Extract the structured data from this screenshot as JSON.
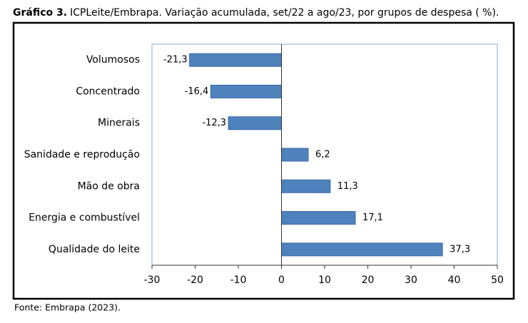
{
  "chart_data": {
    "type": "hbar",
    "title_label": "Gráfico 3.",
    "title": "ICPLeite/Embrapa. Variação acumulada, set/22 a ago/23, por grupos de despesa ( %).",
    "source": "Fonte: Embrapa (2023).",
    "categories": [
      "Volumosos",
      "Concentrado",
      "Minerais",
      "Sanidade e reprodução",
      "Mão de obra",
      "Energia e combustível",
      "Qualidade do leite"
    ],
    "values": [
      -21.3,
      -16.4,
      -12.3,
      6.2,
      11.3,
      17.1,
      37.3
    ],
    "value_labels": [
      "-21,3",
      "-16,4",
      "-12,3",
      "6,2",
      "11,3",
      "17,1",
      "37,3"
    ],
    "color": "#4f81bd",
    "xlim": [
      -30,
      50
    ],
    "xticks": [
      -30,
      -20,
      -10,
      0,
      10,
      20,
      30,
      40,
      50
    ]
  }
}
